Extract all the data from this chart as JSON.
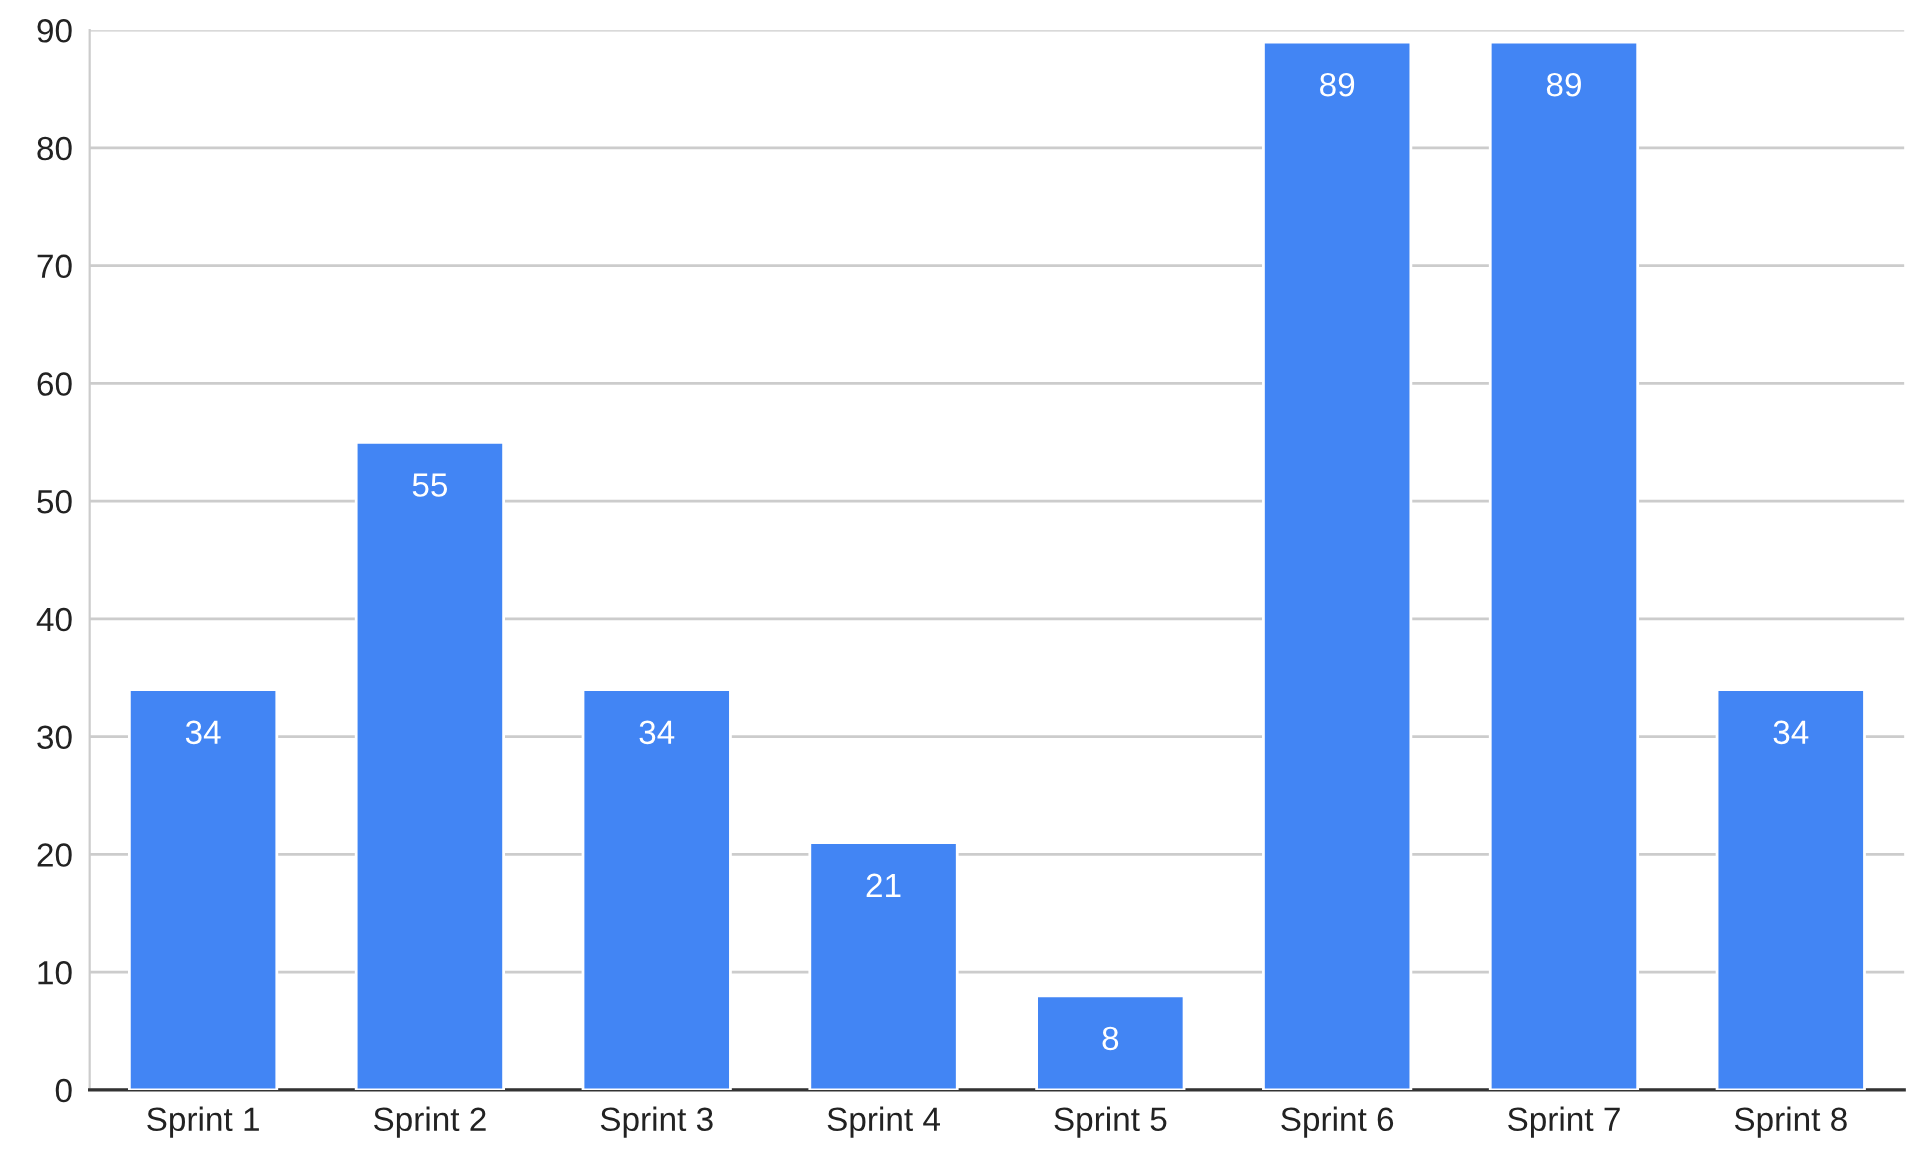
{
  "chart_data": {
    "type": "bar",
    "categories": [
      "Sprint 1",
      "Sprint 2",
      "Sprint 3",
      "Sprint 4",
      "Sprint 5",
      "Sprint 6",
      "Sprint 7",
      "Sprint 8"
    ],
    "values": [
      34,
      55,
      34,
      21,
      8,
      89,
      89,
      34
    ],
    "color": "#4285f4",
    "ylim": [
      0,
      90
    ],
    "yticks": [
      0,
      10,
      20,
      30,
      40,
      50,
      60,
      70,
      80,
      90
    ],
    "grid": "y",
    "data_labels": true
  }
}
